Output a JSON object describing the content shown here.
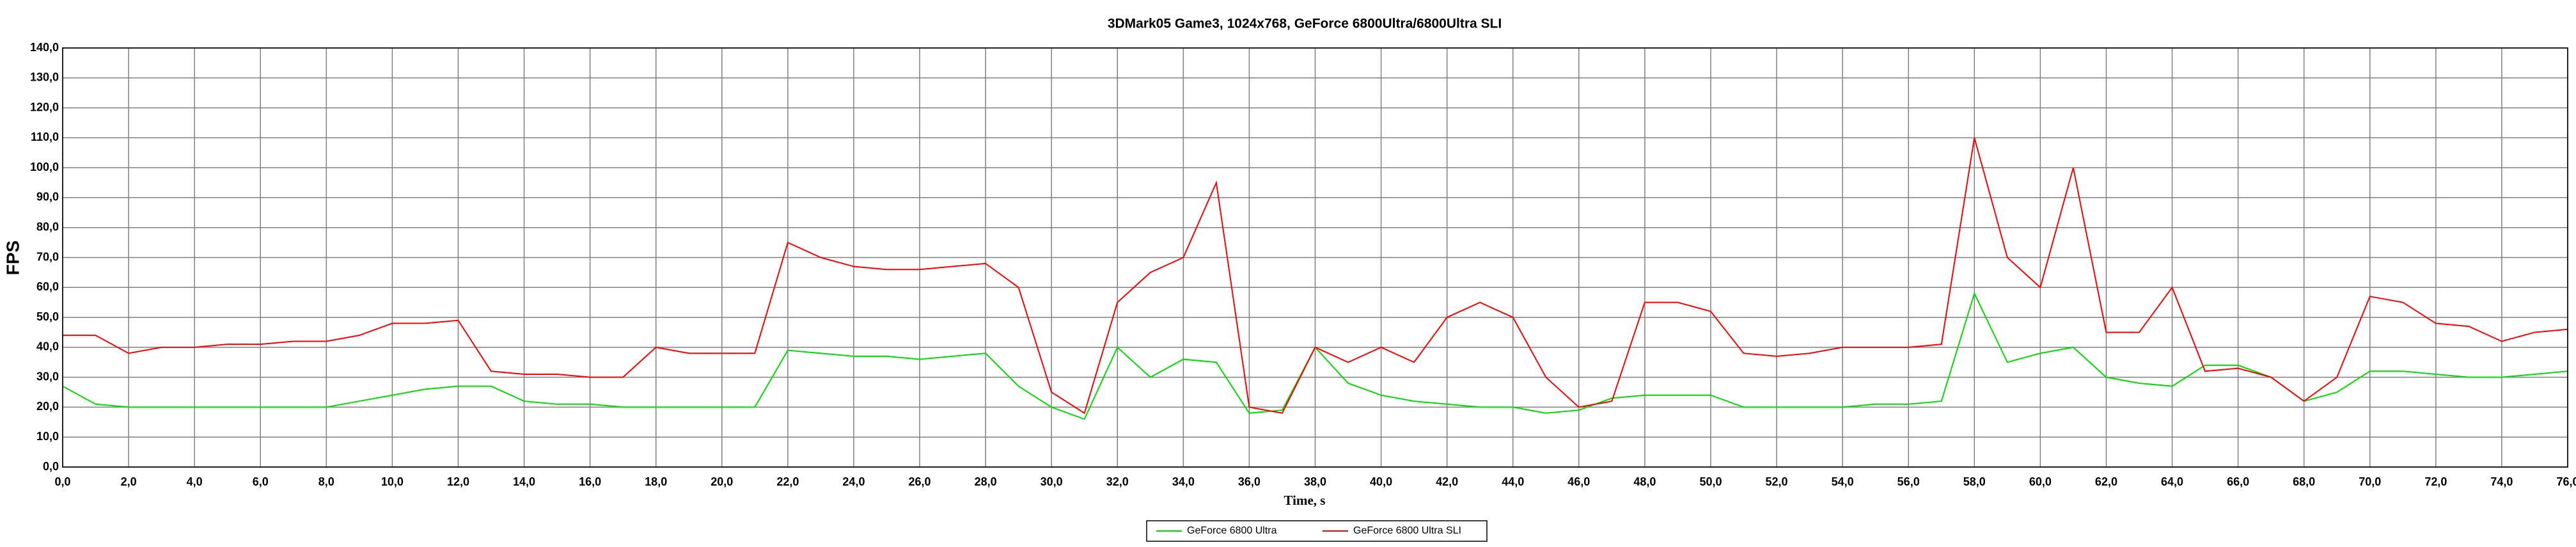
{
  "chart_data": {
    "type": "line",
    "title": "3DMark05 Game3, 1024x768, GeForce 6800Ultra/6800Ultra SLI",
    "x_label": "Time, s",
    "y_label": "FPS",
    "x": [
      0,
      1,
      2,
      3,
      4,
      5,
      6,
      7,
      8,
      9,
      10,
      11,
      12,
      13,
      14,
      15,
      16,
      17,
      18,
      19,
      20,
      21,
      22,
      23,
      24,
      25,
      26,
      27,
      28,
      29,
      30,
      31,
      32,
      33,
      34,
      35,
      36,
      37,
      38,
      39,
      40,
      41,
      42,
      43,
      44,
      45,
      46,
      47,
      48,
      49,
      50,
      51,
      52,
      53,
      54,
      55,
      56,
      57,
      58,
      59,
      60,
      61,
      62,
      63,
      64,
      65,
      66,
      67,
      68,
      69,
      70,
      71,
      72,
      73,
      74,
      75,
      76
    ],
    "series": [
      {
        "name": "GeForce 6800 Ultra",
        "color": "#00dd00",
        "values": [
          27,
          21,
          20,
          20,
          20,
          20,
          20,
          20,
          20,
          22,
          24,
          26,
          27,
          27,
          22,
          21,
          21,
          20,
          20,
          20,
          20,
          20,
          39,
          38,
          37,
          37,
          36,
          37,
          38,
          27,
          20,
          16,
          40,
          30,
          36,
          35,
          18,
          19,
          40,
          28,
          24,
          22,
          21,
          20,
          20,
          18,
          19,
          23,
          24,
          24,
          24,
          20,
          20,
          20,
          20,
          21,
          21,
          22,
          58,
          35,
          38,
          40,
          30,
          28,
          27,
          34,
          34,
          30,
          22,
          25,
          32,
          32,
          31,
          30,
          30,
          31,
          32
        ]
      },
      {
        "name": "GeForce 6800 Ultra SLI",
        "color": "#ff0000",
        "values": [
          44,
          44,
          38,
          40,
          40,
          41,
          41,
          42,
          42,
          44,
          48,
          48,
          49,
          32,
          31,
          31,
          30,
          30,
          40,
          38,
          38,
          38,
          75,
          70,
          67,
          66,
          66,
          67,
          68,
          60,
          25,
          18,
          55,
          65,
          70,
          95,
          20,
          18,
          40,
          35,
          40,
          35,
          50,
          55,
          50,
          30,
          20,
          22,
          55,
          55,
          52,
          38,
          37,
          38,
          40,
          40,
          40,
          41,
          110,
          70,
          60,
          100,
          45,
          45,
          60,
          32,
          33,
          30,
          22,
          30,
          57,
          55,
          48,
          47,
          42,
          45,
          46
        ]
      }
    ],
    "xlim": [
      0,
      76
    ],
    "ylim": [
      0,
      140
    ],
    "xticks": [
      {
        "value": 0,
        "label": "0,0"
      },
      {
        "value": 2,
        "label": "2,0"
      },
      {
        "value": 4,
        "label": "4,0"
      },
      {
        "value": 6,
        "label": "6,0"
      },
      {
        "value": 8,
        "label": "8,0"
      },
      {
        "value": 10,
        "label": "10,0"
      },
      {
        "value": 12,
        "label": "12,0"
      },
      {
        "value": 14,
        "label": "14,0"
      },
      {
        "value": 16,
        "label": "16,0"
      },
      {
        "value": 18,
        "label": "18,0"
      },
      {
        "value": 20,
        "label": "20,0"
      },
      {
        "value": 22,
        "label": "22,0"
      },
      {
        "value": 24,
        "label": "24,0"
      },
      {
        "value": 26,
        "label": "26,0"
      },
      {
        "value": 28,
        "label": "28,0"
      },
      {
        "value": 30,
        "label": "30,0"
      },
      {
        "value": 32,
        "label": "32,0"
      },
      {
        "value": 34,
        "label": "34,0"
      },
      {
        "value": 36,
        "label": "36,0"
      },
      {
        "value": 38,
        "label": "38,0"
      },
      {
        "value": 40,
        "label": "40,0"
      },
      {
        "value": 42,
        "label": "42,0"
      },
      {
        "value": 44,
        "label": "44,0"
      },
      {
        "value": 46,
        "label": "46,0"
      },
      {
        "value": 48,
        "label": "48,0"
      },
      {
        "value": 50,
        "label": "50,0"
      },
      {
        "value": 52,
        "label": "52,0"
      },
      {
        "value": 54,
        "label": "54,0"
      },
      {
        "value": 56,
        "label": "56,0"
      },
      {
        "value": 58,
        "label": "58,0"
      },
      {
        "value": 60,
        "label": "60,0"
      },
      {
        "value": 62,
        "label": "62,0"
      },
      {
        "value": 64,
        "label": "64,0"
      },
      {
        "value": 66,
        "label": "66,0"
      },
      {
        "value": 68,
        "label": "68,0"
      },
      {
        "value": 70,
        "label": "70,0"
      },
      {
        "value": 72,
        "label": "72,0"
      },
      {
        "value": 74,
        "label": "74,0"
      },
      {
        "value": 76,
        "label": "76,0"
      }
    ],
    "yticks": [
      {
        "value": 0,
        "label": "0,0"
      },
      {
        "value": 10,
        "label": "10,0"
      },
      {
        "value": 20,
        "label": "20,0"
      },
      {
        "value": 30,
        "label": "30,0"
      },
      {
        "value": 40,
        "label": "40,0"
      },
      {
        "value": 50,
        "label": "50,0"
      },
      {
        "value": 60,
        "label": "60,0"
      },
      {
        "value": 70,
        "label": "70,0"
      },
      {
        "value": 80,
        "label": "80,0"
      },
      {
        "value": 90,
        "label": "90,0"
      },
      {
        "value": 100,
        "label": "100,0"
      },
      {
        "value": 110,
        "label": "110,0"
      },
      {
        "value": 120,
        "label": "120,0"
      },
      {
        "value": 130,
        "label": "130,0"
      },
      {
        "value": 140,
        "label": "140,0"
      }
    ],
    "grid": true
  }
}
